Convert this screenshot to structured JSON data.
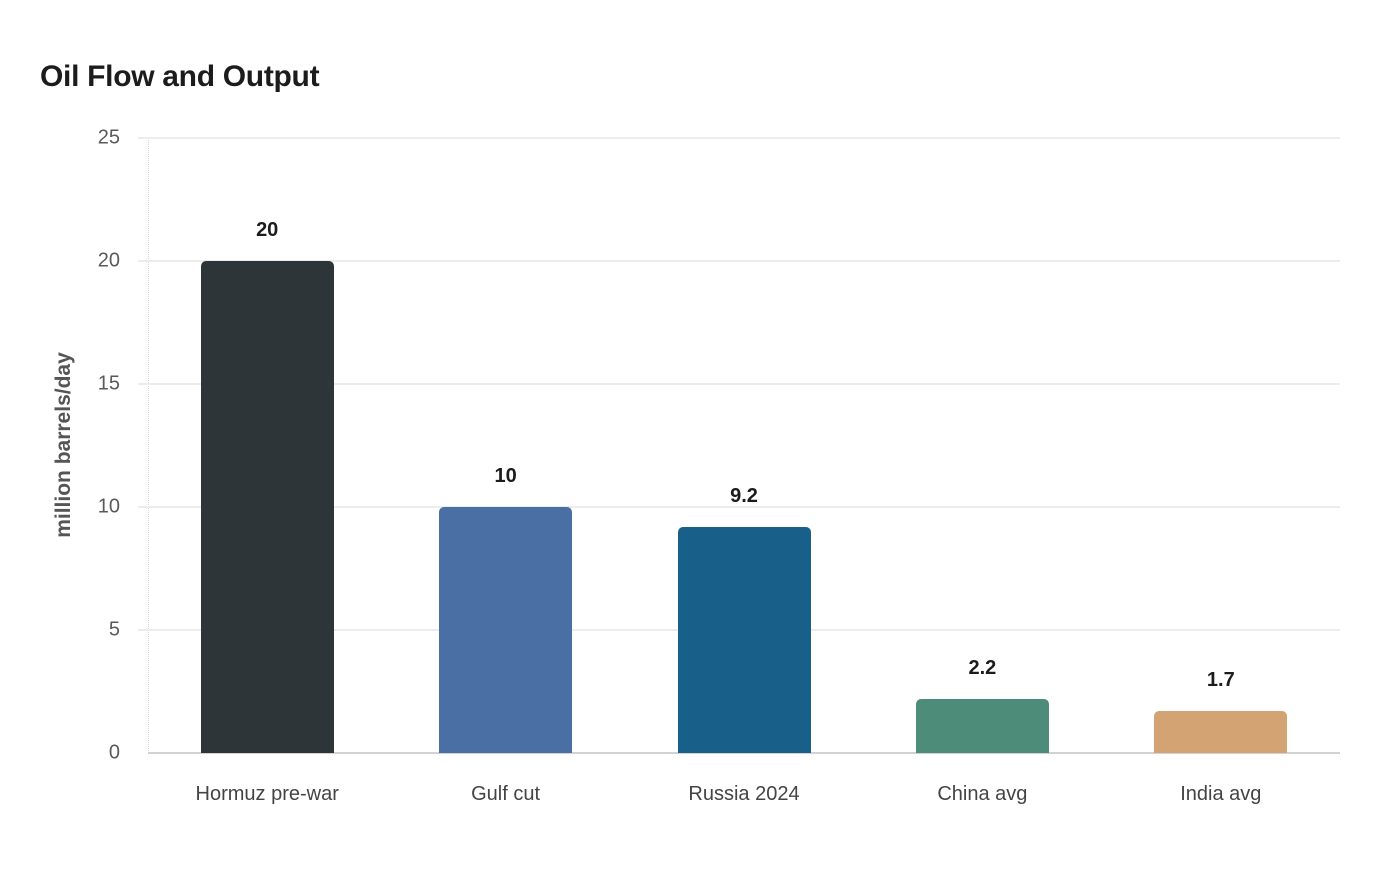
{
  "title": "Oil Flow and Output",
  "chart_data": {
    "type": "bar",
    "title": "Oil Flow and Output",
    "xlabel": "",
    "ylabel": "million barrels/day",
    "ylim": [
      0,
      25
    ],
    "yticks": [
      0,
      5,
      10,
      15,
      20,
      25
    ],
    "grid": true,
    "legend": null,
    "categories": [
      "Hormuz pre-war",
      "Gulf cut",
      "Russia 2024",
      "China avg",
      "India avg"
    ],
    "values": [
      20,
      10,
      9.2,
      2.2,
      1.7
    ],
    "value_labels": [
      "20",
      "10",
      "9.2",
      "2.2",
      "1.7"
    ],
    "colors": [
      "#2e3538",
      "#4a6fa5",
      "#186089",
      "#4e8c7a",
      "#d4a373"
    ]
  }
}
